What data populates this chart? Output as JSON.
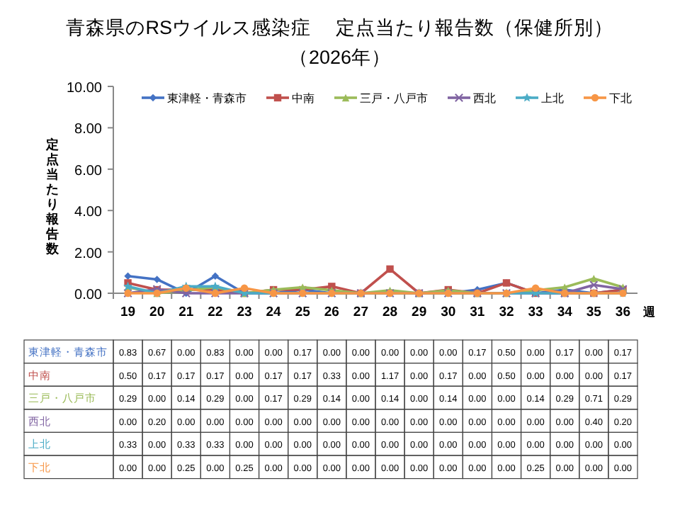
{
  "chart_data": {
    "type": "line",
    "title": "青森県のRSウイルス感染症　 定点当たり報告数（保健所別）",
    "subtitle": "（2026年）",
    "ylabel": "定点当たり報告数",
    "xlabel": "週",
    "categories": [
      "19",
      "20",
      "21",
      "22",
      "23",
      "24",
      "25",
      "26",
      "27",
      "28",
      "29",
      "30",
      "31",
      "32",
      "33",
      "34",
      "35",
      "36"
    ],
    "ylim": [
      0,
      10
    ],
    "yticks": [
      {
        "value": 0,
        "label": "0.00"
      },
      {
        "value": 2,
        "label": "2.00"
      },
      {
        "value": 4,
        "label": "4.00"
      },
      {
        "value": 6,
        "label": "6.00"
      },
      {
        "value": 8,
        "label": "8.00"
      },
      {
        "value": 10,
        "label": "10.00"
      }
    ],
    "legend": "top",
    "series": [
      {
        "name": "東津軽・青森市",
        "color": "#4472c4",
        "marker": "diamond",
        "values": [
          0.83,
          0.67,
          0.0,
          0.83,
          0.0,
          0.0,
          0.17,
          0.0,
          0.0,
          0.0,
          0.0,
          0.0,
          0.17,
          0.5,
          0.0,
          0.17,
          0.0,
          0.17
        ],
        "value_labels": [
          "0.83",
          "0.67",
          "0.00",
          "0.83",
          "0.00",
          "0.00",
          "0.17",
          "0.00",
          "0.00",
          "0.00",
          "0.00",
          "0.00",
          "0.17",
          "0.50",
          "0.00",
          "0.17",
          "0.00",
          "0.17"
        ]
      },
      {
        "name": "中南",
        "color": "#c0504d",
        "marker": "square",
        "values": [
          0.5,
          0.17,
          0.17,
          0.17,
          0.0,
          0.17,
          0.17,
          0.33,
          0.0,
          1.17,
          0.0,
          0.17,
          0.0,
          0.5,
          0.0,
          0.0,
          0.0,
          0.17
        ],
        "value_labels": [
          "0.50",
          "0.17",
          "0.17",
          "0.17",
          "0.00",
          "0.17",
          "0.17",
          "0.33",
          "0.00",
          "1.17",
          "0.00",
          "0.17",
          "0.00",
          "0.50",
          "0.00",
          "0.00",
          "0.00",
          "0.17"
        ]
      },
      {
        "name": "三戸・八戸市",
        "color": "#9bbb59",
        "marker": "triangle",
        "values": [
          0.29,
          0.0,
          0.14,
          0.29,
          0.0,
          0.17,
          0.29,
          0.14,
          0.0,
          0.14,
          0.0,
          0.14,
          0.0,
          0.0,
          0.14,
          0.29,
          0.71,
          0.29
        ],
        "value_labels": [
          "0.29",
          "0.00",
          "0.14",
          "0.29",
          "0.00",
          "0.17",
          "0.29",
          "0.14",
          "0.00",
          "0.14",
          "0.00",
          "0.14",
          "0.00",
          "0.00",
          "0.14",
          "0.29",
          "0.71",
          "0.29"
        ]
      },
      {
        "name": "西北",
        "color": "#8064a2",
        "marker": "cross",
        "values": [
          0.0,
          0.2,
          0.0,
          0.0,
          0.0,
          0.0,
          0.0,
          0.0,
          0.0,
          0.0,
          0.0,
          0.0,
          0.0,
          0.0,
          0.0,
          0.0,
          0.4,
          0.2
        ],
        "value_labels": [
          "0.00",
          "0.20",
          "0.00",
          "0.00",
          "0.00",
          "0.00",
          "0.00",
          "0.00",
          "0.00",
          "0.00",
          "0.00",
          "0.00",
          "0.00",
          "0.00",
          "0.00",
          "0.00",
          "0.40",
          "0.20"
        ]
      },
      {
        "name": "上北",
        "color": "#4bacc6",
        "marker": "star",
        "values": [
          0.33,
          0.0,
          0.33,
          0.33,
          0.0,
          0.0,
          0.0,
          0.0,
          0.0,
          0.0,
          0.0,
          0.0,
          0.0,
          0.0,
          0.0,
          0.0,
          0.0,
          0.0
        ],
        "value_labels": [
          "0.33",
          "0.00",
          "0.33",
          "0.33",
          "0.00",
          "0.00",
          "0.00",
          "0.00",
          "0.00",
          "0.00",
          "0.00",
          "0.00",
          "0.00",
          "0.00",
          "0.00",
          "0.00",
          "0.00",
          "0.00"
        ]
      },
      {
        "name": "下北",
        "color": "#f79646",
        "marker": "circle",
        "values": [
          0.0,
          0.0,
          0.25,
          0.0,
          0.25,
          0.0,
          0.0,
          0.0,
          0.0,
          0.0,
          0.0,
          0.0,
          0.0,
          0.0,
          0.25,
          0.0,
          0.0,
          0.0
        ],
        "value_labels": [
          "0.00",
          "0.00",
          "0.25",
          "0.00",
          "0.25",
          "0.00",
          "0.00",
          "0.00",
          "0.00",
          "0.00",
          "0.00",
          "0.00",
          "0.00",
          "0.00",
          "0.25",
          "0.00",
          "0.00",
          "0.00"
        ]
      }
    ]
  }
}
